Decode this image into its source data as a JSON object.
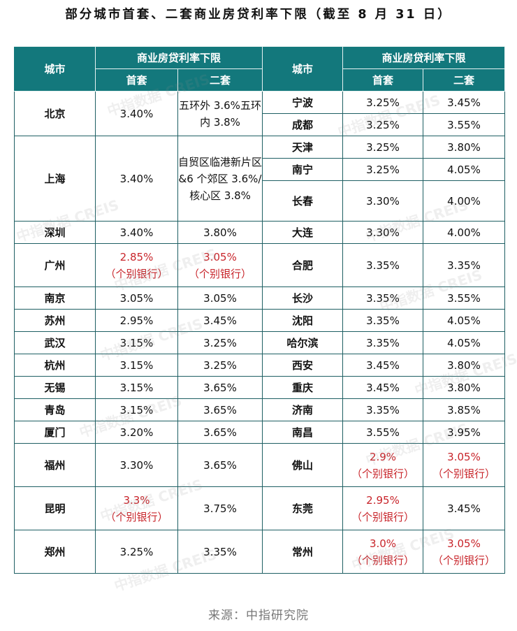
{
  "title": "部分城市首套、二套商业房贷利率下限（截至 8 月 31 日）",
  "header": {
    "city": "城市",
    "group": "商业房贷利率下限",
    "first": "首套",
    "second": "二套"
  },
  "left_rows": [
    {
      "city": "北京",
      "first": "3.40%",
      "second": "五环外 3.6%五环内 3.8%"
    },
    {
      "city": "上海",
      "first": "3.40%",
      "second": "自贸区临港新片区&6 个郊区 3.6%/核心区 3.8%"
    },
    {
      "city": "深圳",
      "first": "3.40%",
      "second": "3.80%"
    },
    {
      "city": "广州",
      "first": "2.85%",
      "first_note": "（个别银行）",
      "second": "3.05%",
      "second_note": "（个别银行）"
    },
    {
      "city": "南京",
      "first": "3.05%",
      "second": "3.05%"
    },
    {
      "city": "苏州",
      "first": "2.95%",
      "second": "3.45%"
    },
    {
      "city": "武汉",
      "first": "3.15%",
      "second": "3.25%"
    },
    {
      "city": "杭州",
      "first": "3.15%",
      "second": "3.25%"
    },
    {
      "city": "无锡",
      "first": "3.15%",
      "second": "3.65%"
    },
    {
      "city": "青岛",
      "first": "3.15%",
      "second": "3.65%"
    },
    {
      "city": "厦门",
      "first": "3.20%",
      "second": "3.65%"
    },
    {
      "city": "福州",
      "first": "3.30%",
      "second": "3.65%"
    },
    {
      "city": "昆明",
      "first": "3.3%",
      "first_note": "（个别银行）",
      "second": "3.75%"
    },
    {
      "city": "郑州",
      "first": "3.25%",
      "second": "3.35%"
    }
  ],
  "right_rows": [
    {
      "city": "宁波",
      "first": "3.25%",
      "second": "3.45%"
    },
    {
      "city": "成都",
      "first": "3.25%",
      "second": "3.55%"
    },
    {
      "city": "天津",
      "first": "3.25%",
      "second": "3.80%"
    },
    {
      "city": "南宁",
      "first": "3.25%",
      "second": "4.05%"
    },
    {
      "city": "长春",
      "first": "3.30%",
      "second": "4.00%"
    },
    {
      "city": "大连",
      "first": "3.30%",
      "second": "4.00%"
    },
    {
      "city": "合肥",
      "first": "3.35%",
      "second": "3.35%"
    },
    {
      "city": "长沙",
      "first": "3.35%",
      "second": "3.55%"
    },
    {
      "city": "沈阳",
      "first": "3.35%",
      "second": "4.05%"
    },
    {
      "city": "哈尔滨",
      "first": "3.35%",
      "second": "4.05%"
    },
    {
      "city": "西安",
      "first": "3.45%",
      "second": "3.80%"
    },
    {
      "city": "重庆",
      "first": "3.45%",
      "second": "3.80%"
    },
    {
      "city": "济南",
      "first": "3.35%",
      "second": "3.85%"
    },
    {
      "city": "南昌",
      "first": "3.55%",
      "second": "3.95%"
    },
    {
      "city": "佛山",
      "first": "2.9%",
      "first_note": "（个别银行）",
      "second": "3.05%",
      "second_note": "（个别银行）"
    },
    {
      "city": "东莞",
      "first": "2.95%",
      "first_note": "（个别银行）",
      "second": "3.45%"
    },
    {
      "city": "常州",
      "first": "3.0%",
      "first_note": "（个别银行）",
      "second": "3.05%",
      "second_note": "（个别银行）"
    }
  ],
  "watermark": "中指数据 CREIS",
  "source": "来源：中指研究院",
  "colors": {
    "header_bg": "#13787c",
    "highlight": "#c8242a",
    "border": "#1e5f63"
  }
}
